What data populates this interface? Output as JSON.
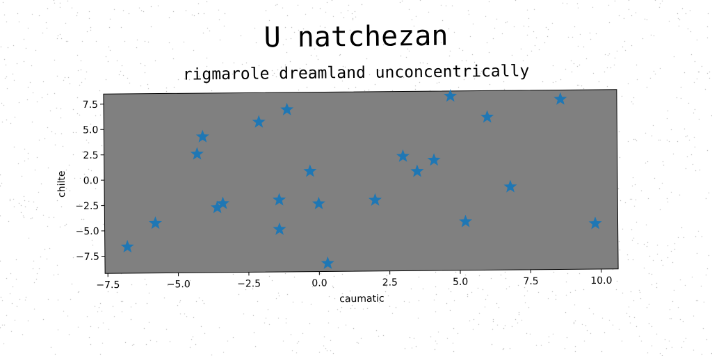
{
  "title": "U natchezan",
  "subtitle": "rigmarole dreamland unconcentrically",
  "colors": {
    "plot_background": "#808080",
    "marker": "#1f77b4",
    "page_background": "#ffffff"
  },
  "chart_data": {
    "type": "scatter",
    "marker": "star",
    "xlabel": "caumatic",
    "ylabel": "chilte",
    "xlim": [
      -7.6,
      10.6
    ],
    "ylim": [
      -9.2,
      8.5
    ],
    "xticks": [
      -7.5,
      -5.0,
      -2.5,
      0.0,
      2.5,
      5.0,
      7.5,
      10.0
    ],
    "xtick_labels": [
      "−7.5",
      "−5.0",
      "−2.5",
      "0.0",
      "2.5",
      "5.0",
      "7.5",
      "10.0"
    ],
    "yticks": [
      -7.5,
      -5.0,
      -2.5,
      0.0,
      2.5,
      5.0,
      7.5
    ],
    "ytick_labels": [
      "−7.5",
      "−5.0",
      "−2.5",
      "0.0",
      "2.5",
      "5.0",
      "7.5"
    ],
    "grid": false,
    "points": [
      {
        "x": -6.8,
        "y": -6.6
      },
      {
        "x": -5.8,
        "y": -4.3
      },
      {
        "x": -4.3,
        "y": 2.5
      },
      {
        "x": -4.1,
        "y": 4.2
      },
      {
        "x": -3.6,
        "y": -2.8
      },
      {
        "x": -3.4,
        "y": -2.4
      },
      {
        "x": -2.1,
        "y": 5.6
      },
      {
        "x": -1.4,
        "y": -2.1
      },
      {
        "x": -1.4,
        "y": -5.0
      },
      {
        "x": -1.1,
        "y": 6.8
      },
      {
        "x": -0.3,
        "y": 0.7
      },
      {
        "x": 0.0,
        "y": -2.5
      },
      {
        "x": 0.3,
        "y": -8.4
      },
      {
        "x": 2.0,
        "y": -2.2
      },
      {
        "x": 3.0,
        "y": 2.1
      },
      {
        "x": 3.5,
        "y": 0.6
      },
      {
        "x": 4.1,
        "y": 1.7
      },
      {
        "x": 4.7,
        "y": 8.0
      },
      {
        "x": 5.2,
        "y": -4.4
      },
      {
        "x": 6.0,
        "y": 5.9
      },
      {
        "x": 6.8,
        "y": -1.0
      },
      {
        "x": 8.6,
        "y": 7.6
      },
      {
        "x": 9.8,
        "y": -4.7
      }
    ]
  }
}
